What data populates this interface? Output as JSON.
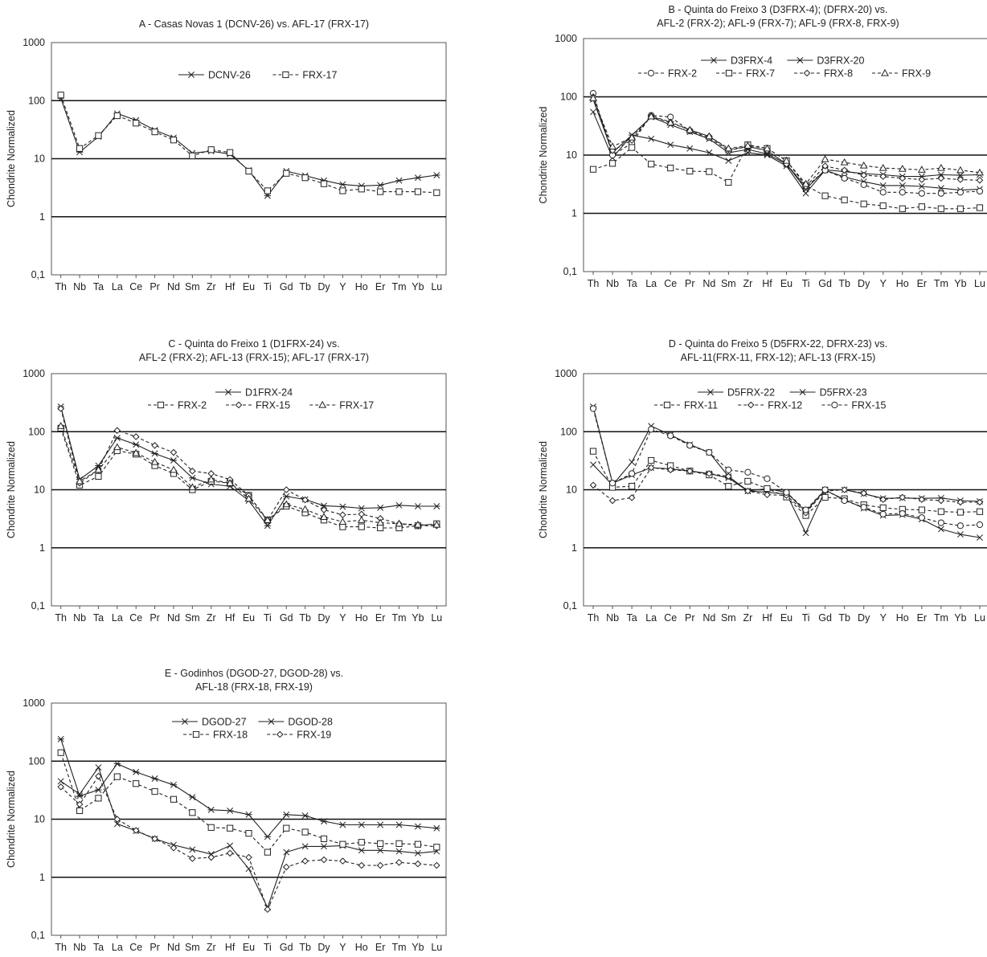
{
  "chart_data": [
    {
      "type": "line",
      "title": [
        "A - Casas Novas 1 (DCNV-26) vs. AFL-17 (FRX-17)"
      ],
      "ylabel": "Chondrite Normalized",
      "yscale": "log",
      "ylim": [
        0.1,
        1000
      ],
      "yticks": [
        "0,1",
        "1",
        "10",
        "100",
        "1000"
      ],
      "categories": [
        "Th",
        "Nb",
        "Ta",
        "La",
        "Ce",
        "Pr",
        "Nd",
        "Sm",
        "Zr",
        "Hf",
        "Eu",
        "Ti",
        "Gd",
        "Tb",
        "Dy",
        "Y",
        "Ho",
        "Er",
        "Tm",
        "Yb",
        "Lu"
      ],
      "legend_rows": [
        [
          "DCNV-26",
          "FRX-17"
        ]
      ],
      "series": [
        {
          "name": "DCNV-26",
          "dash": false,
          "marker": "star",
          "values": [
            110,
            13,
            24,
            60,
            46,
            31,
            23,
            12.5,
            13.5,
            12,
            6.3,
            2.3,
            6.1,
            5.1,
            4.2,
            3.6,
            3.4,
            3.5,
            4.2,
            4.7,
            5.2
          ]
        },
        {
          "name": "FRX-17",
          "dash": true,
          "marker": "square",
          "values": [
            125,
            15,
            25,
            55,
            41,
            29,
            21,
            11.2,
            14.3,
            12.8,
            6.1,
            2.8,
            5.6,
            4.7,
            3.7,
            2.8,
            3.0,
            2.7,
            2.7,
            2.7,
            2.6
          ]
        }
      ]
    },
    {
      "type": "line",
      "title": [
        "B - Quinta do Freixo 3 (D3FRX-4); (DFRX-20) vs.",
        "AFL-2 (FRX-2); AFL-9 (FRX-7); AFL-9 (FRX-8, FRX-9)"
      ],
      "ylabel": "Chondrite Normalized",
      "yscale": "log",
      "ylim": [
        0.1,
        1000
      ],
      "yticks": [
        "0,1",
        "1",
        "10",
        "100",
        "1000"
      ],
      "categories": [
        "Th",
        "Nb",
        "Ta",
        "La",
        "Ce",
        "Pr",
        "Nd",
        "Sm",
        "Zr",
        "Hf",
        "Eu",
        "Ti",
        "Gd",
        "Tb",
        "Dy",
        "Y",
        "Ho",
        "Er",
        "Tm",
        "Yb",
        "Lu"
      ],
      "legend_rows": [
        [
          "D3FRX-4",
          "D3FRX-20"
        ],
        [
          "FRX-2",
          "FRX-7",
          "FRX-8",
          "FRX-9"
        ]
      ],
      "series": [
        {
          "name": "D3FRX-4",
          "dash": false,
          "marker": "star",
          "values": [
            90,
            11,
            22,
            45,
            33,
            25,
            19,
            11,
            12.5,
            10.5,
            7,
            2.6,
            5.6,
            5.2,
            4.8,
            4.6,
            4.3,
            4.3,
            4.6,
            4.5,
            4.6
          ]
        },
        {
          "name": "D3FRX-20",
          "dash": false,
          "marker": "cross",
          "values": [
            55,
            9,
            22,
            19,
            15,
            13,
            11,
            8,
            11,
            10,
            6.5,
            2.2,
            5.5,
            4.2,
            3.5,
            3,
            3,
            2.9,
            2.7,
            2.5,
            2.6
          ]
        },
        {
          "name": "FRX-2",
          "dash": true,
          "marker": "circle",
          "values": [
            115,
            10,
            16,
            48,
            45,
            26,
            20,
            12,
            14,
            12,
            7,
            2.8,
            5.5,
            4,
            3.1,
            2.3,
            2.3,
            2.2,
            2.2,
            2.3,
            2.4
          ]
        },
        {
          "name": "FRX-7",
          "dash": true,
          "marker": "square",
          "values": [
            5.7,
            7.2,
            13.5,
            7,
            6,
            5.3,
            5.2,
            3.4,
            15,
            13,
            8,
            3,
            2,
            1.7,
            1.45,
            1.35,
            1.2,
            1.3,
            1.2,
            1.2,
            1.25
          ]
        },
        {
          "name": "FRX-8",
          "dash": true,
          "marker": "diamond",
          "values": [
            100,
            12,
            18,
            47,
            37,
            27,
            21,
            12.5,
            14,
            12,
            7,
            2.9,
            6.5,
            5.5,
            4.5,
            4.3,
            4,
            3.8,
            4,
            3.8,
            3.7
          ]
        },
        {
          "name": "FRX-9",
          "dash": true,
          "marker": "triangle",
          "values": [
            95,
            14,
            20,
            46,
            36,
            27,
            21,
            13,
            14.5,
            13,
            8,
            3.2,
            8.5,
            7.5,
            6.6,
            6,
            5.8,
            5.6,
            6,
            5.5,
            5
          ]
        }
      ]
    },
    {
      "type": "line",
      "title": [
        "C - Quinta do  Freixo 1 (D1FRX-24) vs.",
        "AFL-2 (FRX-2); AFL-13 (FRX-15); AFL-17 (FRX-17)"
      ],
      "ylabel": "Chondrite Normalized",
      "yscale": "log",
      "ylim": [
        0.1,
        1000
      ],
      "yticks": [
        "0,1",
        "1",
        "10",
        "100",
        "1000"
      ],
      "categories": [
        "Th",
        "Nb",
        "Ta",
        "La",
        "Ce",
        "Pr",
        "Nd",
        "Sm",
        "Zr",
        "Hf",
        "Eu",
        "Ti",
        "Gd",
        "Tb",
        "Dy",
        "Y",
        "Ho",
        "Er",
        "Tm",
        "Yb",
        "Lu"
      ],
      "legend_rows": [
        [
          "D1FRX-24"
        ],
        [
          "FRX-2",
          "FRX-15",
          "FRX-17"
        ]
      ],
      "series": [
        {
          "name": "D1FRX-24",
          "dash": false,
          "marker": "star",
          "values": [
            270,
            15,
            26,
            78,
            60,
            42,
            32,
            16,
            12.5,
            11.5,
            6.5,
            2.4,
            7.7,
            6.8,
            5.3,
            5.1,
            4.8,
            4.9,
            5.4,
            5.2,
            5.2
          ]
        },
        {
          "name": "FRX-2",
          "dash": true,
          "marker": "square",
          "values": [
            115,
            12,
            17,
            47,
            41,
            26,
            19,
            10,
            14,
            13,
            8,
            3,
            5.2,
            4,
            3,
            2.3,
            2.3,
            2.2,
            2.2,
            2.4,
            2.6
          ]
        },
        {
          "name": "FRX-15",
          "dash": true,
          "marker": "diamond",
          "values": [
            250,
            13,
            22,
            105,
            82,
            58,
            44,
            21,
            19,
            15,
            8,
            3,
            10,
            6.7,
            4.5,
            3.7,
            3.8,
            3.2,
            2.6,
            2.4,
            2.4
          ]
        },
        {
          "name": "FRX-17",
          "dash": true,
          "marker": "triangle",
          "values": [
            125,
            14,
            22,
            54,
            43,
            30,
            22,
            11,
            15,
            13,
            7,
            3,
            5.6,
            4.6,
            3.4,
            2.8,
            3,
            2.7,
            2.6,
            2.5,
            2.5
          ]
        }
      ]
    },
    {
      "type": "line",
      "title": [
        "D - Quinta do Freixo 5 (D5FRX-22, DFRX-23) vs.",
        "AFL-11(FRX-11, FRX-12); AFL-13 (FRX-15)"
      ],
      "ylabel": "Chondrite Normalized",
      "yscale": "log",
      "ylim": [
        0.1,
        1000
      ],
      "yticks": [
        "0,1",
        "1",
        "10",
        "100",
        "1000"
      ],
      "categories": [
        "Th",
        "Nb",
        "Ta",
        "La",
        "Ce",
        "Pr",
        "Nd",
        "Sm",
        "Zr",
        "Hf",
        "Eu",
        "Ti",
        "Gd",
        "Tb",
        "Dy",
        "Y",
        "Ho",
        "Er",
        "Tm",
        "Yb",
        "Lu"
      ],
      "legend_rows": [
        [
          "D5FRX-22",
          "D5FRX-23"
        ],
        [
          "FRX-11",
          "FRX-12",
          "FRX-15"
        ]
      ],
      "series": [
        {
          "name": "D5FRX-22",
          "dash": false,
          "marker": "star",
          "values": [
            270,
            13,
            18,
            24,
            23,
            21,
            19,
            16,
            9.5,
            10.5,
            9,
            4.2,
            10,
            10,
            8.5,
            7.1,
            7.2,
            7.1,
            7.2,
            6.5,
            6.3
          ]
        },
        {
          "name": "D5FRX-23",
          "dash": false,
          "marker": "cross",
          "values": [
            27,
            12,
            30,
            125,
            88,
            60,
            44,
            17,
            9.6,
            9,
            8.5,
            1.8,
            9.8,
            6.8,
            4.8,
            3.6,
            3.7,
            3.1,
            2.1,
            1.7,
            1.5
          ]
        },
        {
          "name": "FRX-11",
          "dash": true,
          "marker": "square",
          "values": [
            46,
            11,
            11.5,
            32,
            26,
            21,
            18,
            11.5,
            14,
            10.5,
            7.5,
            3.6,
            7.4,
            7,
            5.5,
            4.9,
            4.6,
            4.5,
            4.2,
            4.1,
            4.2
          ]
        },
        {
          "name": "FRX-12",
          "dash": true,
          "marker": "diamond",
          "values": [
            12,
            6.5,
            7.3,
            24,
            22,
            21,
            19,
            17,
            9.5,
            8.2,
            8,
            4,
            9.5,
            10,
            8.7,
            6.8,
            7.4,
            6.8,
            6.5,
            6.1,
            6.1
          ]
        },
        {
          "name": "FRX-15",
          "dash": true,
          "marker": "circle",
          "values": [
            250,
            13,
            19,
            110,
            85,
            58,
            44,
            22,
            20,
            15.5,
            9,
            4.5,
            10,
            6.5,
            5,
            3.8,
            3.9,
            3.3,
            2.7,
            2.4,
            2.5
          ]
        }
      ]
    },
    {
      "type": "line",
      "title": [
        "E - Godinhos (DGOD-27, DGOD-28) vs.",
        "AFL-18 (FRX-18, FRX-19)"
      ],
      "ylabel": "Chondrite Normalized",
      "yscale": "log",
      "ylim": [
        0.1,
        1000
      ],
      "yticks": [
        "0,1",
        "1",
        "10",
        "100",
        "1000"
      ],
      "categories": [
        "Th",
        "Nb",
        "Ta",
        "La",
        "Ce",
        "Pr",
        "Nd",
        "Sm",
        "Zr",
        "Hf",
        "Eu",
        "Ti",
        "Gd",
        "Tb",
        "Dy",
        "Y",
        "Ho",
        "Er",
        "Tm",
        "Yb",
        "Lu"
      ],
      "legend_rows": [
        [
          "DGOD-27",
          "DGOD-28"
        ],
        [
          "FRX-18",
          "FRX-19"
        ]
      ],
      "series": [
        {
          "name": "DGOD-27",
          "dash": false,
          "marker": "star",
          "values": [
            240,
            25,
            32,
            90,
            65,
            50,
            39,
            24,
            14.5,
            14,
            12,
            5,
            12,
            11.5,
            9.2,
            8,
            8,
            8,
            8,
            7.5,
            7
          ]
        },
        {
          "name": "DGOD-28",
          "dash": false,
          "marker": "cross",
          "values": [
            45,
            27,
            78,
            8.3,
            6.3,
            4.6,
            3.6,
            3,
            2.5,
            3.5,
            1.4,
            0.3,
            2.7,
            3.4,
            3.4,
            3.5,
            2.9,
            2.9,
            2.8,
            2.6,
            2.8
          ]
        },
        {
          "name": "FRX-18",
          "dash": true,
          "marker": "square",
          "values": [
            140,
            14,
            23,
            54,
            41,
            30,
            22,
            13,
            7.2,
            7,
            5.7,
            2.7,
            7,
            6,
            4.6,
            3.7,
            4,
            3.8,
            3.8,
            3.7,
            3.3
          ]
        },
        {
          "name": "FRX-19",
          "dash": true,
          "marker": "diamond",
          "values": [
            36,
            18,
            55,
            10,
            6.4,
            4.6,
            3.2,
            2.1,
            2.2,
            2.6,
            2.2,
            0.28,
            1.5,
            1.9,
            2,
            1.9,
            1.6,
            1.6,
            1.8,
            1.7,
            1.6
          ]
        }
      ]
    }
  ]
}
